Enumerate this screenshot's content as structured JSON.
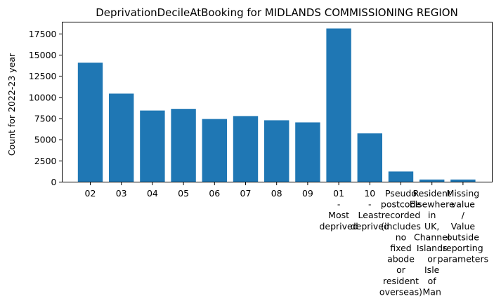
{
  "chart_data": {
    "type": "bar",
    "title": "DeprivationDecileAtBooking for MIDLANDS COMMISSIONING REGION",
    "xlabel": "",
    "ylabel": "Count for 2022-23 year",
    "ylim": [
      0,
      18900
    ],
    "yticks": [
      0,
      2500,
      5000,
      7500,
      10000,
      12500,
      15000,
      17500
    ],
    "ytick_labels": [
      "0",
      "2500",
      "5000",
      "7500",
      "10000",
      "12500",
      "15000",
      "17500"
    ],
    "grid": false,
    "bar_color": "#1f77b4",
    "categories": [
      [
        "02"
      ],
      [
        "03"
      ],
      [
        "04"
      ],
      [
        "05"
      ],
      [
        "06"
      ],
      [
        "07"
      ],
      [
        "08"
      ],
      [
        "09"
      ],
      [
        "01",
        "-",
        "Most",
        "deprived"
      ],
      [
        "10",
        "-",
        "Least",
        "deprived"
      ],
      [
        "Pseudo",
        "postcode",
        "recorded",
        "(includes",
        "no",
        "fixed",
        "abode",
        "or",
        "resident",
        "overseas)"
      ],
      [
        "Resident",
        "Elsewhere",
        "in",
        "UK,",
        "Channel",
        "Islands",
        "or",
        "Isle",
        "of",
        "Man"
      ],
      [
        "Missing",
        "value",
        "/",
        "Value",
        "outside",
        "reporting",
        "parameters"
      ]
    ],
    "values": [
      14100,
      10450,
      8450,
      8650,
      7450,
      7800,
      7300,
      7050,
      18150,
      5750,
      1250,
      300,
      300
    ]
  }
}
